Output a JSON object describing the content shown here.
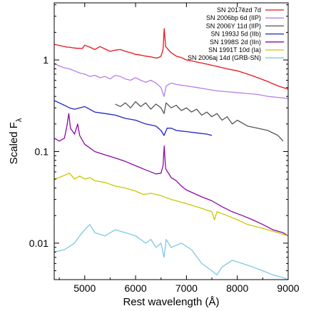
{
  "chart_data": {
    "type": "line",
    "title": "",
    "xlabel": "Rest wavelength (Å)",
    "ylabel": "Scaled F",
    "ylabel_subscript": "λ",
    "x_scale": "linear",
    "y_scale": "log",
    "xlim": [
      4400,
      9000
    ],
    "ylim": [
      0.004,
      4.2
    ],
    "x_ticks": [
      5000,
      6000,
      7000,
      8000,
      9000
    ],
    "x_tick_labels": [
      "5000",
      "6000",
      "7000",
      "8000",
      "9000"
    ],
    "y_ticks": [
      0.01,
      0.1,
      1
    ],
    "y_tick_labels": [
      "0.01",
      "0.1",
      "1"
    ],
    "grid": false,
    "legend_position": "top-right",
    "series": [
      {
        "name": "SN 2017ězd 7d",
        "color": "#e8141c",
        "x": [
          4400,
          4450,
          4500,
          4550,
          4600,
          4650,
          4700,
          4750,
          4800,
          4850,
          4900,
          4950,
          5000,
          5100,
          5200,
          5300,
          5400,
          5500,
          5600,
          5700,
          5800,
          5900,
          6000,
          6100,
          6200,
          6300,
          6400,
          6450,
          6500,
          6540,
          6563,
          6590,
          6700,
          6800,
          6900,
          7000,
          7200,
          7400,
          7600,
          7800,
          8000,
          8200,
          8400,
          8600,
          8800,
          9000
        ],
        "y": [
          1.48,
          1.46,
          1.44,
          1.42,
          1.4,
          1.38,
          1.38,
          1.36,
          1.35,
          1.34,
          1.34,
          1.33,
          1.45,
          1.38,
          1.3,
          1.4,
          1.32,
          1.24,
          1.28,
          1.3,
          1.24,
          1.2,
          1.15,
          1.13,
          1.1,
          1.08,
          1.05,
          1.06,
          1.1,
          1.3,
          2.2,
          1.4,
          1.2,
          1.1,
          1.06,
          1.0,
          0.95,
          0.9,
          0.85,
          0.8,
          0.76,
          0.7,
          0.64,
          0.58,
          0.52,
          0.48
        ]
      },
      {
        "name": "SN 2006bp 6d (IIP)",
        "color": "#b57fe8",
        "x": [
          4400,
          4500,
          4600,
          4700,
          4800,
          4900,
          5000,
          5100,
          5200,
          5300,
          5400,
          5500,
          5600,
          5700,
          5800,
          5900,
          6000,
          6100,
          6200,
          6300,
          6400,
          6500,
          6560,
          6600,
          6700,
          6800,
          7000,
          7200,
          7400,
          7600,
          7800,
          8000,
          8200,
          8400,
          8600,
          8800,
          9000
        ],
        "y": [
          0.92,
          0.86,
          0.82,
          0.8,
          0.76,
          0.72,
          0.7,
          0.66,
          0.68,
          0.64,
          0.66,
          0.62,
          0.68,
          0.66,
          0.62,
          0.6,
          0.64,
          0.6,
          0.57,
          0.6,
          0.56,
          0.5,
          0.4,
          0.52,
          0.56,
          0.54,
          0.52,
          0.5,
          0.48,
          0.46,
          0.45,
          0.44,
          0.43,
          0.42,
          0.4,
          0.39,
          0.38
        ]
      },
      {
        "name": "SN 2006Y 11d (IIP)",
        "color": "#555555",
        "x": [
          5600,
          5700,
          5800,
          5900,
          6000,
          6100,
          6200,
          6300,
          6400,
          6500,
          6560,
          6600,
          6700,
          6800,
          6900,
          7000,
          7100,
          7200,
          7300,
          7400,
          7500,
          7600,
          7700,
          7800,
          7900,
          8000,
          8200,
          8400,
          8600,
          8800,
          8900
        ],
        "y": [
          0.33,
          0.31,
          0.34,
          0.3,
          0.35,
          0.31,
          0.34,
          0.29,
          0.33,
          0.3,
          0.26,
          0.34,
          0.3,
          0.32,
          0.28,
          0.3,
          0.27,
          0.29,
          0.25,
          0.27,
          0.24,
          0.26,
          0.22,
          0.24,
          0.2,
          0.22,
          0.19,
          0.18,
          0.17,
          0.15,
          0.13
        ]
      },
      {
        "name": "SN 1993J 5d (IIb)",
        "color": "#1f24c4",
        "x": [
          4400,
          4500,
          4600,
          4700,
          4800,
          4900,
          5000,
          5200,
          5400,
          5600,
          5800,
          6000,
          6200,
          6400,
          6500,
          6560,
          6620,
          6700,
          6800,
          7000,
          7200,
          7400,
          7500
        ],
        "y": [
          0.36,
          0.34,
          0.32,
          0.3,
          0.29,
          0.3,
          0.31,
          0.27,
          0.26,
          0.25,
          0.23,
          0.22,
          0.2,
          0.19,
          0.17,
          0.15,
          0.18,
          0.18,
          0.17,
          0.165,
          0.16,
          0.155,
          0.15
        ]
      },
      {
        "name": "SN 1998S 2d (IIn)",
        "color": "#8b0aa5",
        "x": [
          4400,
          4500,
          4600,
          4650,
          4686,
          4720,
          4800,
          4861,
          4900,
          5000,
          5200,
          5400,
          5600,
          5800,
          6000,
          6200,
          6400,
          6500,
          6540,
          6563,
          6590,
          6700,
          6800,
          6900,
          7000,
          7100,
          7300,
          7500,
          7700,
          7900,
          8100,
          8300,
          8500,
          8700,
          8900,
          9000
        ],
        "y": [
          0.14,
          0.13,
          0.14,
          0.19,
          0.26,
          0.18,
          0.155,
          0.2,
          0.15,
          0.12,
          0.1,
          0.092,
          0.085,
          0.078,
          0.07,
          0.063,
          0.057,
          0.058,
          0.07,
          0.115,
          0.065,
          0.052,
          0.048,
          0.042,
          0.038,
          0.036,
          0.032,
          0.029,
          0.025,
          0.022,
          0.02,
          0.018,
          0.016,
          0.014,
          0.013,
          0.012
        ]
      },
      {
        "name": "SN 1991T 10d (Ia)",
        "color": "#c8c800",
        "x": [
          4400,
          4500,
          4600,
          4700,
          4800,
          4900,
          5000,
          5100,
          5200,
          5400,
          5600,
          5800,
          6000,
          6150,
          6300,
          6500,
          6700,
          6900,
          7100,
          7300,
          7500,
          7550,
          7600,
          7800,
          8000,
          8200,
          8400,
          8600,
          8800,
          9000
        ],
        "y": [
          0.05,
          0.052,
          0.055,
          0.058,
          0.05,
          0.054,
          0.05,
          0.052,
          0.048,
          0.046,
          0.042,
          0.04,
          0.037,
          0.034,
          0.035,
          0.033,
          0.03,
          0.028,
          0.026,
          0.024,
          0.022,
          0.018,
          0.022,
          0.02,
          0.018,
          0.016,
          0.015,
          0.014,
          0.013,
          0.012
        ]
      },
      {
        "name": "SN 2006aj 14d (GRB-SN)",
        "color": "#7ec8e3",
        "x": [
          4400,
          4600,
          4800,
          4900,
          5000,
          5100,
          5200,
          5400,
          5600,
          5800,
          6000,
          6200,
          6300,
          6400,
          6500,
          6560,
          6600,
          6700,
          6900,
          7100,
          7300,
          7500,
          7600,
          7700,
          7900,
          8100,
          8300,
          8500,
          8700,
          8900,
          9000
        ],
        "y": [
          0.008,
          0.0085,
          0.01,
          0.012,
          0.014,
          0.016,
          0.013,
          0.012,
          0.014,
          0.013,
          0.012,
          0.01,
          0.011,
          0.009,
          0.01,
          0.007,
          0.011,
          0.009,
          0.01,
          0.0085,
          0.006,
          0.005,
          0.0045,
          0.0055,
          0.0065,
          0.006,
          0.0055,
          0.005,
          0.0045,
          0.0042,
          0.004
        ]
      }
    ]
  }
}
